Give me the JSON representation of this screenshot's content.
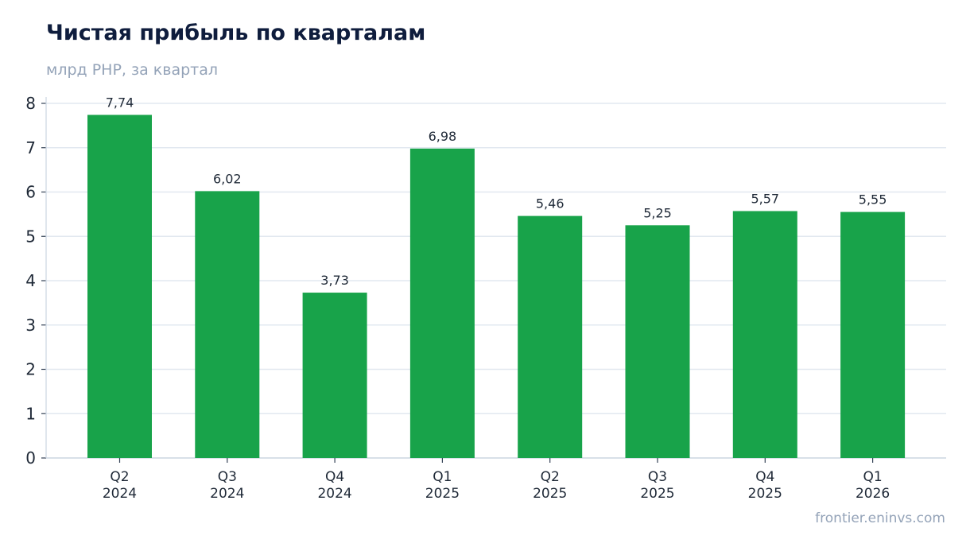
{
  "header": {
    "title": "Чистая прибыль по кварталам",
    "subtitle": "млрд РНР, за квартал"
  },
  "footer": {
    "watermark": "frontier.eninvs.com"
  },
  "colors": {
    "bar": "#18a34a",
    "grid": "#e2e8f0",
    "axis": "#cbd5e1",
    "title": "#0f1d3d",
    "muted": "#94a3b8"
  },
  "chart_data": {
    "type": "bar",
    "categories": [
      [
        "Q2",
        "2024"
      ],
      [
        "Q3",
        "2024"
      ],
      [
        "Q4",
        "2024"
      ],
      [
        "Q1",
        "2025"
      ],
      [
        "Q2",
        "2025"
      ],
      [
        "Q3",
        "2025"
      ],
      [
        "Q4",
        "2025"
      ],
      [
        "Q1",
        "2026"
      ]
    ],
    "values": [
      7.74,
      6.02,
      3.73,
      6.98,
      5.46,
      5.25,
      5.57,
      5.55
    ],
    "value_labels": [
      "7,74",
      "6,02",
      "3,73",
      "6,98",
      "5,46",
      "5,25",
      "5,57",
      "5,55"
    ],
    "ylim": [
      0,
      8
    ],
    "yticks": [
      0,
      1,
      2,
      3,
      4,
      5,
      6,
      7,
      8
    ],
    "grid": true,
    "xlabel": "",
    "ylabel": ""
  }
}
